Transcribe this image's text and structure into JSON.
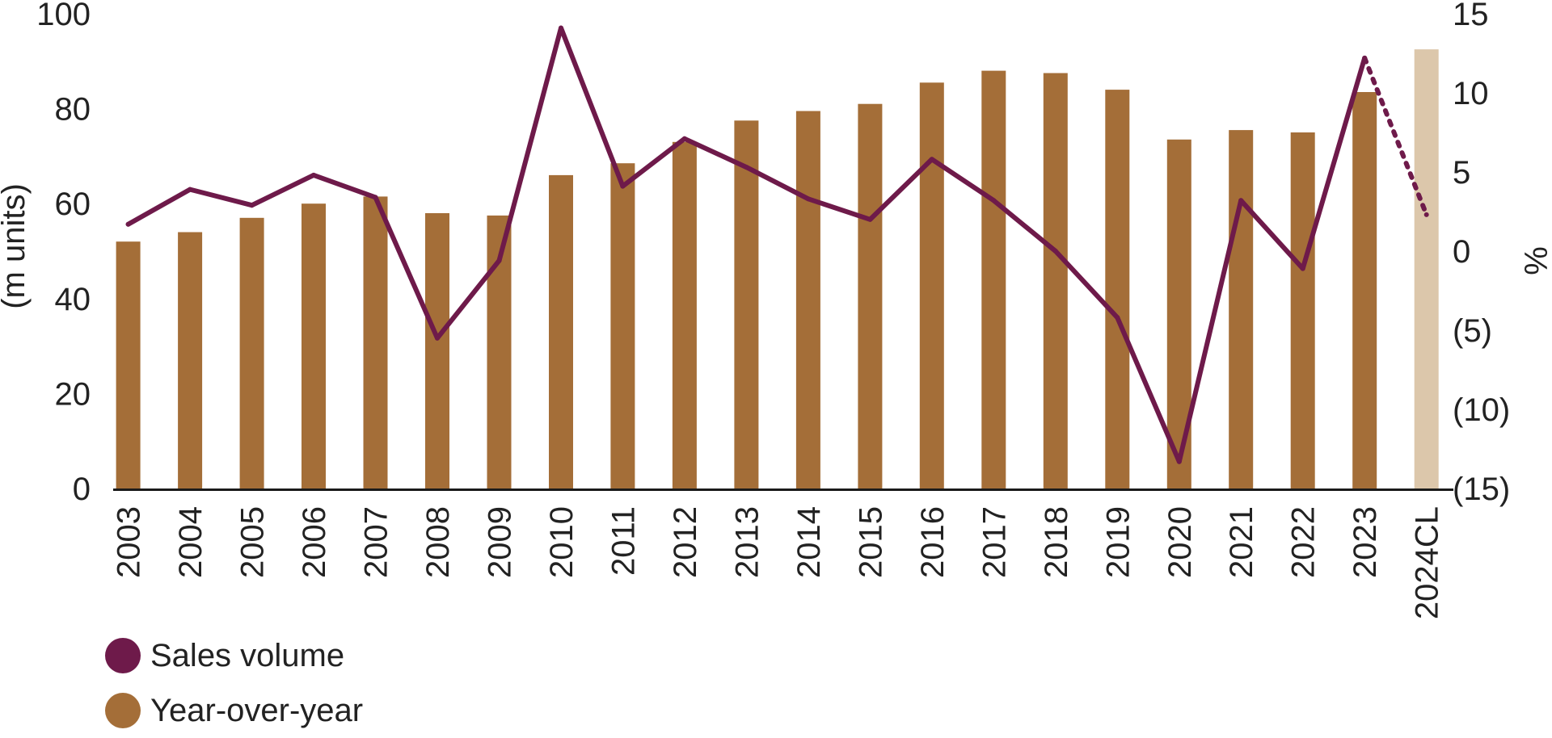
{
  "chart_data": {
    "type": "bar",
    "categories": [
      "2003",
      "2004",
      "2005",
      "2006",
      "2007",
      "2008",
      "2009",
      "2010",
      "2011",
      "2012",
      "2013",
      "2014",
      "2015",
      "2016",
      "2017",
      "2018",
      "2019",
      "2020",
      "2021",
      "2022",
      "2023",
      "2024CL"
    ],
    "series": [
      {
        "name": "Year-over-year",
        "type": "bar",
        "axis": "left",
        "values": [
          52,
          54,
          57,
          60,
          61.5,
          58,
          57.5,
          66,
          68.5,
          73,
          77.5,
          79.5,
          81,
          85.5,
          88,
          87.5,
          84,
          73.5,
          75.5,
          75,
          83.5,
          92.5
        ],
        "forecast_from": "2024CL"
      },
      {
        "name": "Sales volume",
        "type": "line",
        "axis": "right",
        "values": [
          1.7,
          3.9,
          2.9,
          4.8,
          3.4,
          -5.5,
          -0.6,
          14.1,
          4.1,
          7.1,
          5.3,
          3.3,
          2.0,
          5.8,
          3.2,
          0.0,
          -4.2,
          -13.3,
          3.2,
          -1.1,
          12.2,
          2.3
        ],
        "forecast_from": "2023"
      }
    ],
    "y_left": {
      "label": "(m units)",
      "ylim": [
        0,
        100
      ],
      "ticks": [
        "0",
        "20",
        "40",
        "60",
        "80",
        "100"
      ]
    },
    "y_right": {
      "label": "%",
      "ylim": [
        -15,
        15
      ],
      "ticks": [
        "(15)",
        "(10)",
        "(5)",
        "0",
        "5",
        "10",
        "15"
      ]
    },
    "grid": false,
    "legend_position": "bottom-left"
  },
  "legend": [
    {
      "label": "Sales volume",
      "color": "#6E1A4A"
    },
    {
      "label": "Year-over-year",
      "color": "#A46E38"
    }
  ],
  "colors": {
    "bar": "#A46E38",
    "bar_forecast": "#DCC7AB",
    "line": "#6E1A4A",
    "axis": "#1a1a1a"
  }
}
